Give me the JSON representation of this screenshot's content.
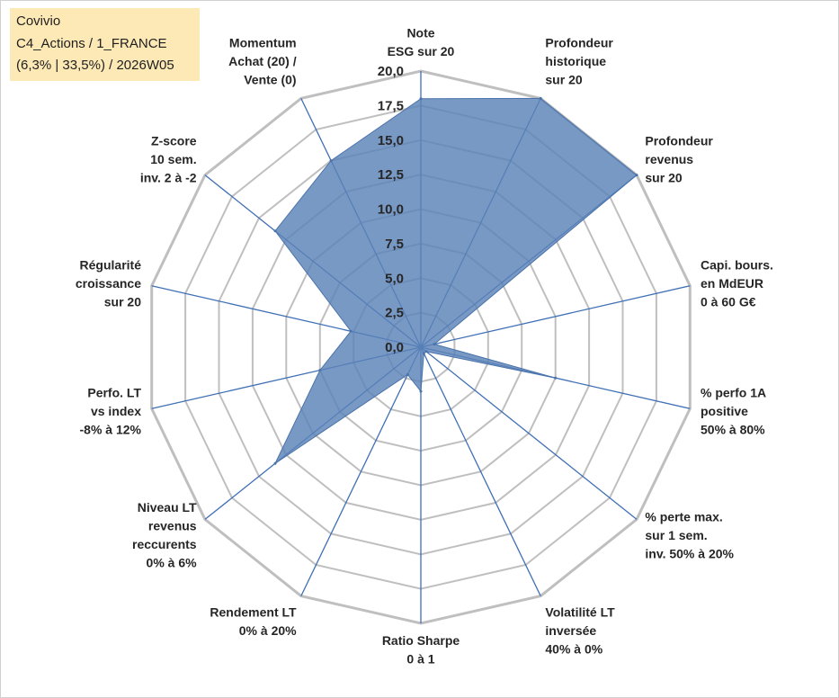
{
  "legend": {
    "line1": "Covivio",
    "line2": "C4_Actions / 1_FRANCE",
    "line3": "(6,3% | 33,5%) / 2026W05"
  },
  "chart_data": {
    "type": "radar",
    "title": "Covivio",
    "range": [
      0,
      20
    ],
    "tick_labels": [
      "0,0",
      "2,5",
      "5,0",
      "7,5",
      "10,0",
      "12,5",
      "15,0",
      "17,5",
      "20,0"
    ],
    "axes": [
      [
        "Note",
        "ESG sur 20"
      ],
      [
        "Profondeur",
        "historique",
        "sur 20"
      ],
      [
        "Profondeur",
        "revenus",
        "sur 20"
      ],
      [
        "Capi. bours.",
        "en MdEUR",
        "0 à 60 G€"
      ],
      [
        "% perfo 1A",
        "positive",
        "50% à 80%"
      ],
      [
        "% perte max.",
        "sur 1 sem.",
        "inv. 50% à 20%"
      ],
      [
        "Volatilité LT",
        "inversée",
        "40% à 0%"
      ],
      [
        "Ratio Sharpe",
        "0 à 1"
      ],
      [
        "Rendement LT",
        "0% à 20%"
      ],
      [
        "Niveau LT",
        "revenus",
        "reccurents",
        "0% à 6%"
      ],
      [
        "Perfo. LT",
        "vs index",
        "-8% à 12%"
      ],
      [
        "Régularité",
        "croissance",
        "sur 20"
      ],
      [
        "Z-score",
        "10 sem.",
        "inv. 2 à -2"
      ],
      [
        "Momentum",
        "Achat (20) /",
        "Vente (0)"
      ]
    ],
    "series": [
      {
        "name": "Covivio",
        "values": [
          18,
          20,
          20,
          1,
          10,
          0.5,
          0.5,
          3.2,
          2.2,
          13.5,
          7.5,
          5.2,
          13.5,
          15
        ],
        "color": "#5b83b8"
      }
    ],
    "grid_color": "#bfbfbf",
    "axis_color": "#3f6fb5"
  }
}
